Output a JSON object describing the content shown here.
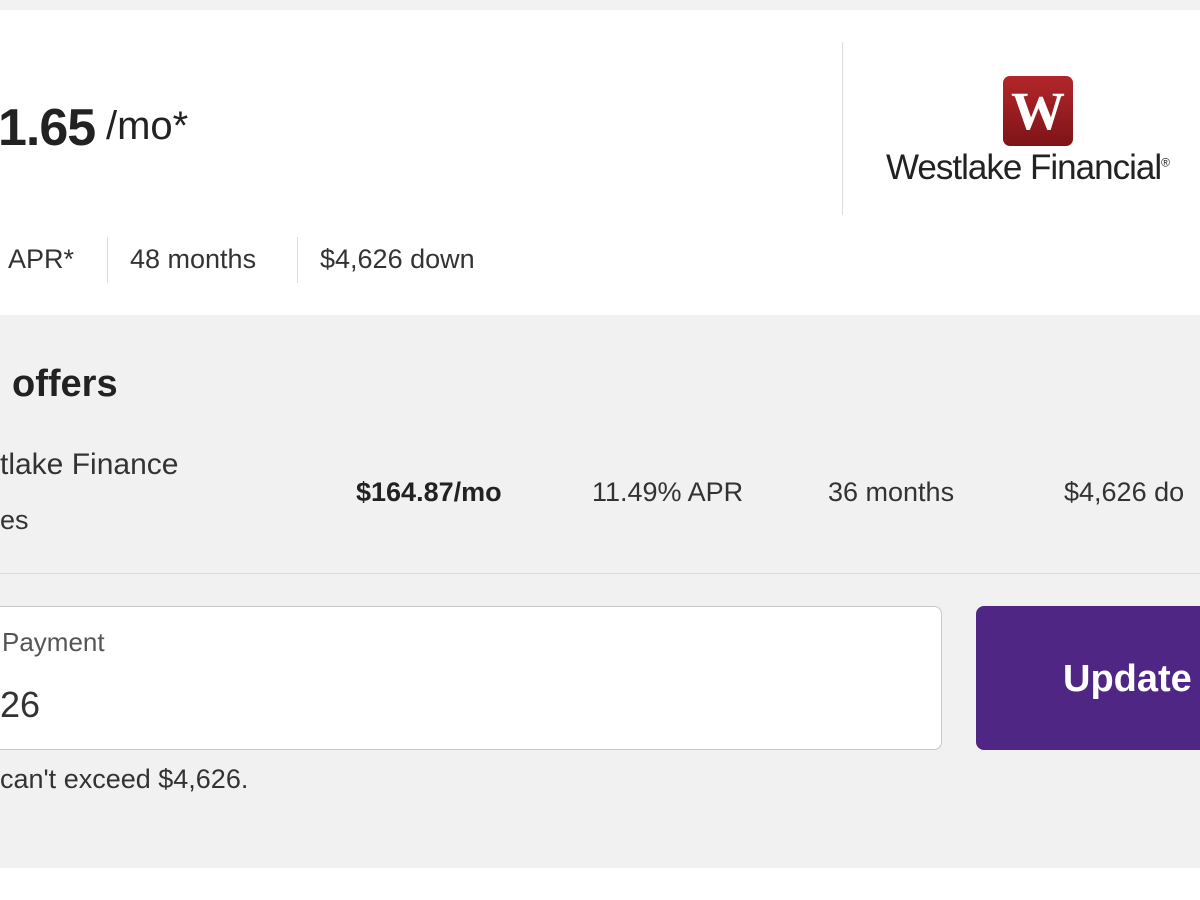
{
  "offer": {
    "price": "1.65",
    "unit": "/mo*",
    "logo_letter": "W",
    "lender": "Westlake Financial",
    "registered": "®",
    "apr": "APR*",
    "term": "48 months",
    "down": "$4,626 down"
  },
  "other_offers": {
    "title": "offers",
    "rows": [
      {
        "lender": "tlake Finance",
        "sub": "es",
        "price": "$164.87/mo",
        "apr": "11.49% APR",
        "term": "36 months",
        "down": "$4,626 do"
      }
    ]
  },
  "form": {
    "label": "Payment",
    "value": "26",
    "button": "Update",
    "hint": "can't exceed $4,626."
  }
}
